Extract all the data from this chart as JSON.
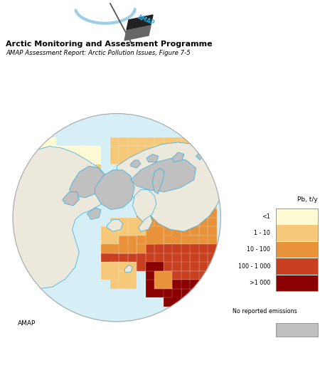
{
  "title1": "Arctic Monitoring and Assessment Programme",
  "title2": "AMAP Assessment Report: Arctic Pollution Issues, Figure 7-5",
  "legend_title": "Pb, t/y",
  "legend_labels": [
    "<1",
    "1 - 10",
    "10 - 100",
    "100 - 1 000",
    ">1 000"
  ],
  "legend_colors": [
    "#FEFAD4",
    "#F5C87A",
    "#E8923A",
    "#C94020",
    "#8B0000"
  ],
  "no_data_label": "No reported emissions",
  "no_data_color": "#C0C0C0",
  "ocean_color": "#D6EEF5",
  "land_color": "#EDE8DC",
  "coastline_color": "#2AADE4",
  "background_color": "#FFFFFF",
  "amap_text": "AMAP",
  "fig_width": 4.5,
  "fig_height": 5.34,
  "dpi": 100
}
